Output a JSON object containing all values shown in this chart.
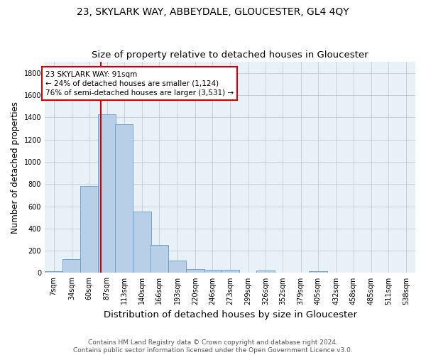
{
  "title": "23, SKYLARK WAY, ABBEYDALE, GLOUCESTER, GL4 4QY",
  "subtitle": "Size of property relative to detached houses in Gloucester",
  "xlabel": "Distribution of detached houses by size in Gloucester",
  "ylabel": "Number of detached properties",
  "bin_labels": [
    "7sqm",
    "34sqm",
    "60sqm",
    "87sqm",
    "113sqm",
    "140sqm",
    "166sqm",
    "193sqm",
    "220sqm",
    "246sqm",
    "273sqm",
    "299sqm",
    "326sqm",
    "352sqm",
    "379sqm",
    "405sqm",
    "432sqm",
    "458sqm",
    "485sqm",
    "511sqm",
    "538sqm"
  ],
  "bin_edges": [
    7,
    34,
    60,
    87,
    113,
    140,
    166,
    193,
    220,
    246,
    273,
    299,
    326,
    352,
    379,
    405,
    432,
    458,
    485,
    511,
    538
  ],
  "bar_heights": [
    15,
    125,
    780,
    1430,
    1340,
    550,
    250,
    110,
    35,
    30,
    30,
    0,
    20,
    0,
    0,
    15,
    0,
    0,
    0,
    0
  ],
  "bar_color": "#b8cfe8",
  "bar_edge_color": "#6699cc",
  "property_size": 91,
  "red_line_color": "#cc0000",
  "annotation_line1": "23 SKYLARK WAY: 91sqm",
  "annotation_line2": "← 24% of detached houses are smaller (1,124)",
  "annotation_line3": "76% of semi-detached houses are larger (3,531) →",
  "annotation_box_color": "#ffffff",
  "annotation_box_edge_color": "#cc0000",
  "ylim": [
    0,
    1900
  ],
  "yticks": [
    0,
    200,
    400,
    600,
    800,
    1000,
    1200,
    1400,
    1600,
    1800
  ],
  "footer_line1": "Contains HM Land Registry data © Crown copyright and database right 2024.",
  "footer_line2": "Contains public sector information licensed under the Open Government Licence v3.0.",
  "background_color": "#ffffff",
  "plot_bg_color": "#e8f0f8",
  "grid_color": "#c8d0dc",
  "title_fontsize": 10,
  "subtitle_fontsize": 9.5,
  "axis_label_fontsize": 8.5,
  "tick_fontsize": 7,
  "annotation_fontsize": 7.5,
  "footer_fontsize": 6.5
}
